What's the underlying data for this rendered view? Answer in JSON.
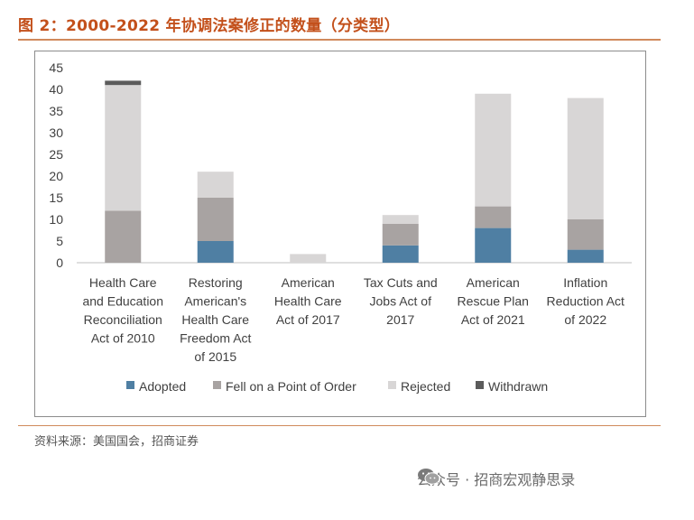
{
  "figure": {
    "title": "图 2：2000-2022 年协调法案修正的数量（分类型）",
    "source": "资料来源：美国国会，招商证券",
    "watermark_text": "公众号 · 招商宏观静思录",
    "watermark_icon": "wechat-icon"
  },
  "chart_data": {
    "type": "bar",
    "stacked": true,
    "categories": [
      "Health Care and Education Reconciliation Act of 2010",
      "Restoring American's Health Care Freedom Act of 2015",
      "American Health Care Act of 2017",
      "Tax Cuts and Jobs Act of 2017",
      "American Rescue Plan Act of 2021",
      "Inflation Reduction Act of 2022"
    ],
    "category_lines": [
      [
        "Health Care",
        "and Education",
        "Reconciliation",
        "Act of 2010"
      ],
      [
        "Restoring",
        "American's",
        "Health Care",
        "Freedom Act",
        "of 2015"
      ],
      [
        "American",
        "Health Care",
        "Act of 2017"
      ],
      [
        "Tax Cuts and",
        "Jobs Act of",
        "2017"
      ],
      [
        "American",
        "Rescue Plan",
        "Act of 2021"
      ],
      [
        "Inflation",
        "Reduction Act",
        "of 2022"
      ]
    ],
    "series": [
      {
        "name": "Adopted",
        "color": "#4f7fa3",
        "values": [
          0,
          5,
          0,
          4,
          8,
          3
        ]
      },
      {
        "name": "Fell on a Point of Order",
        "color": "#a8a3a2",
        "values": [
          12,
          10,
          0,
          5,
          5,
          7
        ]
      },
      {
        "name": "Rejected",
        "color": "#d8d6d6",
        "values": [
          29,
          6,
          2,
          2,
          26,
          28
        ]
      },
      {
        "name": "Withdrawn",
        "color": "#5b5b5b",
        "values": [
          1,
          0,
          0,
          0,
          0,
          0
        ]
      }
    ],
    "ylim": [
      0,
      45
    ],
    "yticks": [
      0,
      5,
      10,
      15,
      20,
      25,
      30,
      35,
      40,
      45
    ],
    "xlabel": "",
    "ylabel": "",
    "grid": false,
    "legend_position": "bottom"
  }
}
